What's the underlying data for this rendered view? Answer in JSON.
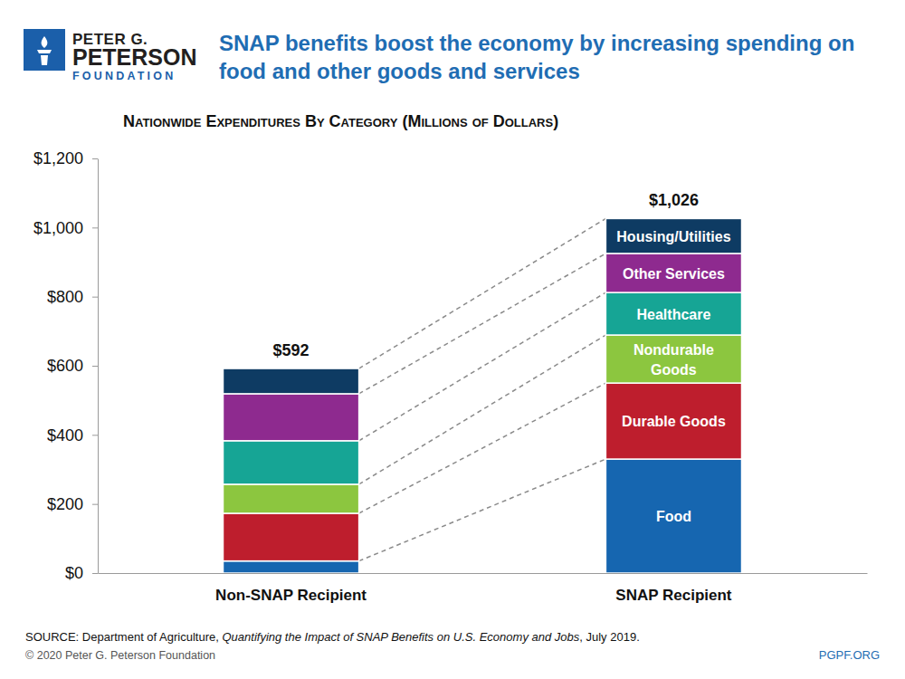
{
  "chart_data": {
    "type": "bar",
    "stacked": true,
    "grid": false,
    "logo": [
      "PETER G.",
      "PETERSON",
      "FOUNDATION"
    ],
    "title": "SNAP benefits boost the economy by increasing spending on food and other goods and services",
    "subtitle": "Nationwide Expenditures By Category (Millions of Dollars)",
    "categories": [
      "Non-SNAP Recipient",
      "SNAP Recipient"
    ],
    "series": [
      {
        "name": "Food",
        "color": "#1666b0",
        "values": [
          35,
          330
        ]
      },
      {
        "name": "Durable Goods",
        "color": "#be1e2d",
        "values": [
          138,
          220
        ]
      },
      {
        "name": "Nondurable Goods",
        "color": "#8cc63f",
        "values": [
          84,
          139
        ]
      },
      {
        "name": "Healthcare",
        "color": "#16a595",
        "values": [
          126,
          123
        ]
      },
      {
        "name": "Other Services",
        "color": "#8e2a8f",
        "values": [
          136,
          113
        ]
      },
      {
        "name": "Housing/Utilities",
        "color": "#0e3b63",
        "values": [
          73,
          101
        ]
      }
    ],
    "totals": {
      "values": [
        592,
        1026
      ],
      "value_labels": [
        "$592",
        "$1,026"
      ]
    },
    "ylim": [
      0,
      1200
    ],
    "yticks": [
      {
        "value": 0,
        "label": "$0"
      },
      {
        "value": 200,
        "label": "$200"
      },
      {
        "value": 400,
        "label": "$400"
      },
      {
        "value": 600,
        "label": "$600"
      },
      {
        "value": 800,
        "label": "$800"
      },
      {
        "value": 1000,
        "label": "$1,000"
      },
      {
        "value": 1200,
        "label": "$1,200"
      }
    ],
    "source": [
      "SOURCE: Department of Agriculture, ",
      "Quantifying the Impact of SNAP Benefits on U.S. Economy and Jobs",
      ", July 2019."
    ],
    "copyright": "© 2020 Peter G. Peterson Foundation",
    "url": "PGPF.ORG"
  }
}
